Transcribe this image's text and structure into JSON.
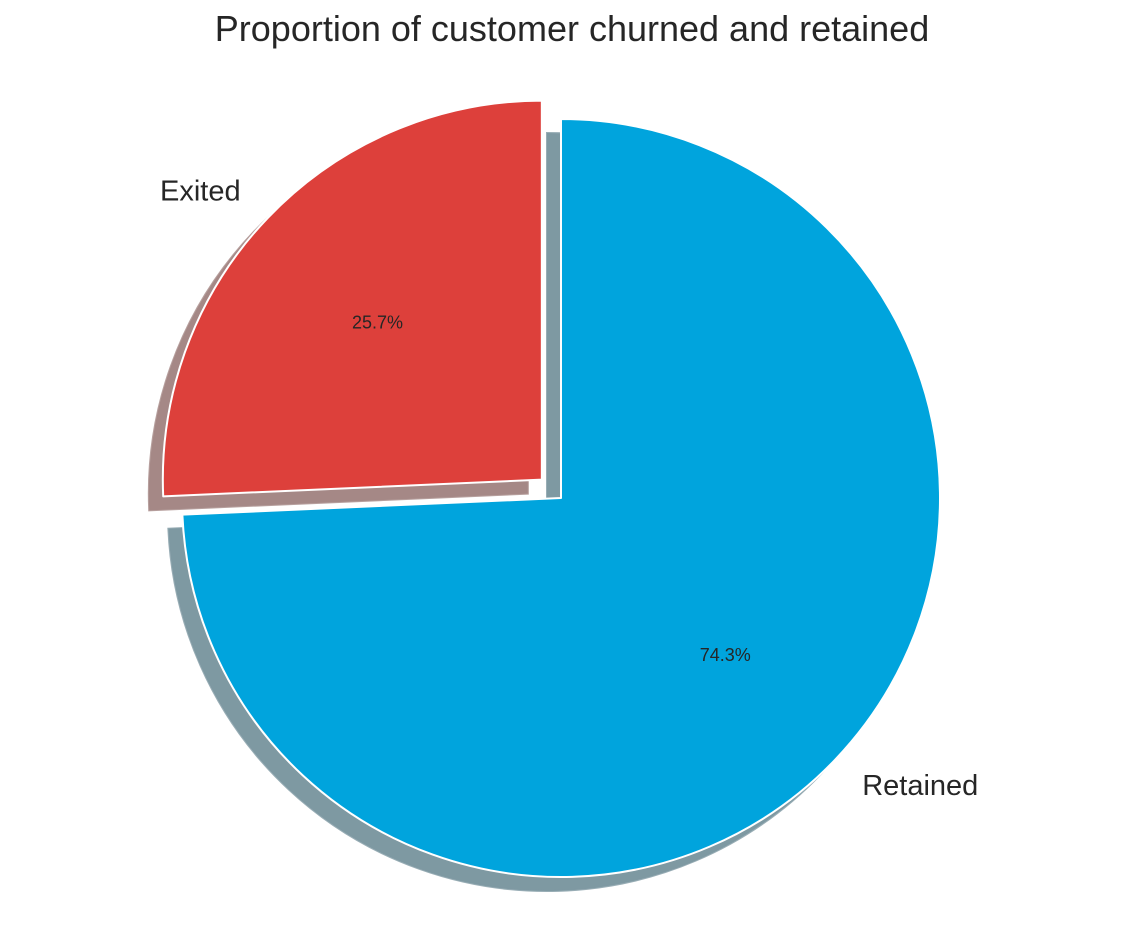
{
  "chart_data": {
    "type": "pie",
    "title": "Proportion of customer churned and retained",
    "slices": [
      {
        "label": "Exited",
        "value": 25.7,
        "pct_label": "25.7%",
        "color": "#dd403b",
        "exploded": true
      },
      {
        "label": "Retained",
        "value": 74.3,
        "pct_label": "74.3%",
        "color": "#00a4dd",
        "exploded": false
      }
    ],
    "start_angle_deg": 90,
    "direction": "counterclockwise",
    "shadow": true,
    "slice_edge_color": "#ffffff",
    "shadow_colors": [
      "#a58886",
      "#7e99a2"
    ],
    "label_color": "#262626"
  }
}
